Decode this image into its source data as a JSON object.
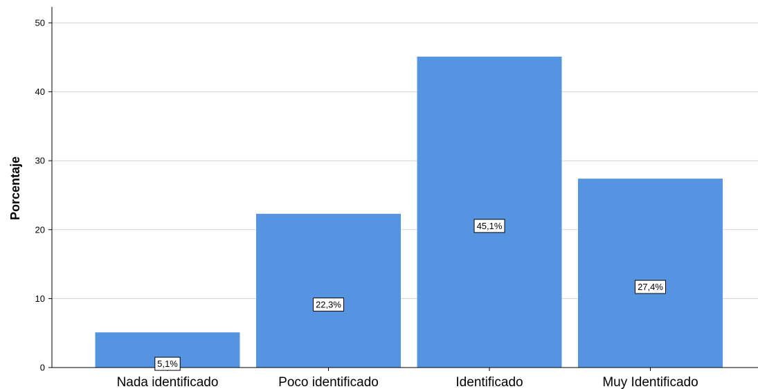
{
  "chart_data": {
    "type": "bar",
    "categories": [
      "Nada identificado",
      "Poco identificado",
      "Identificado",
      "Muy Identificado"
    ],
    "values": [
      5.1,
      22.3,
      45.1,
      27.4
    ],
    "data_labels": [
      "5,1%",
      "22,3%",
      "45,1%",
      "27,4%"
    ],
    "title": "",
    "xlabel": "",
    "ylabel": "Porcentaje",
    "ylim": [
      0,
      50
    ],
    "yticks": [
      "0",
      "10",
      "20",
      "30",
      "40",
      "50"
    ],
    "grid": true,
    "bar_color": "#5594e0",
    "legend": "none"
  }
}
